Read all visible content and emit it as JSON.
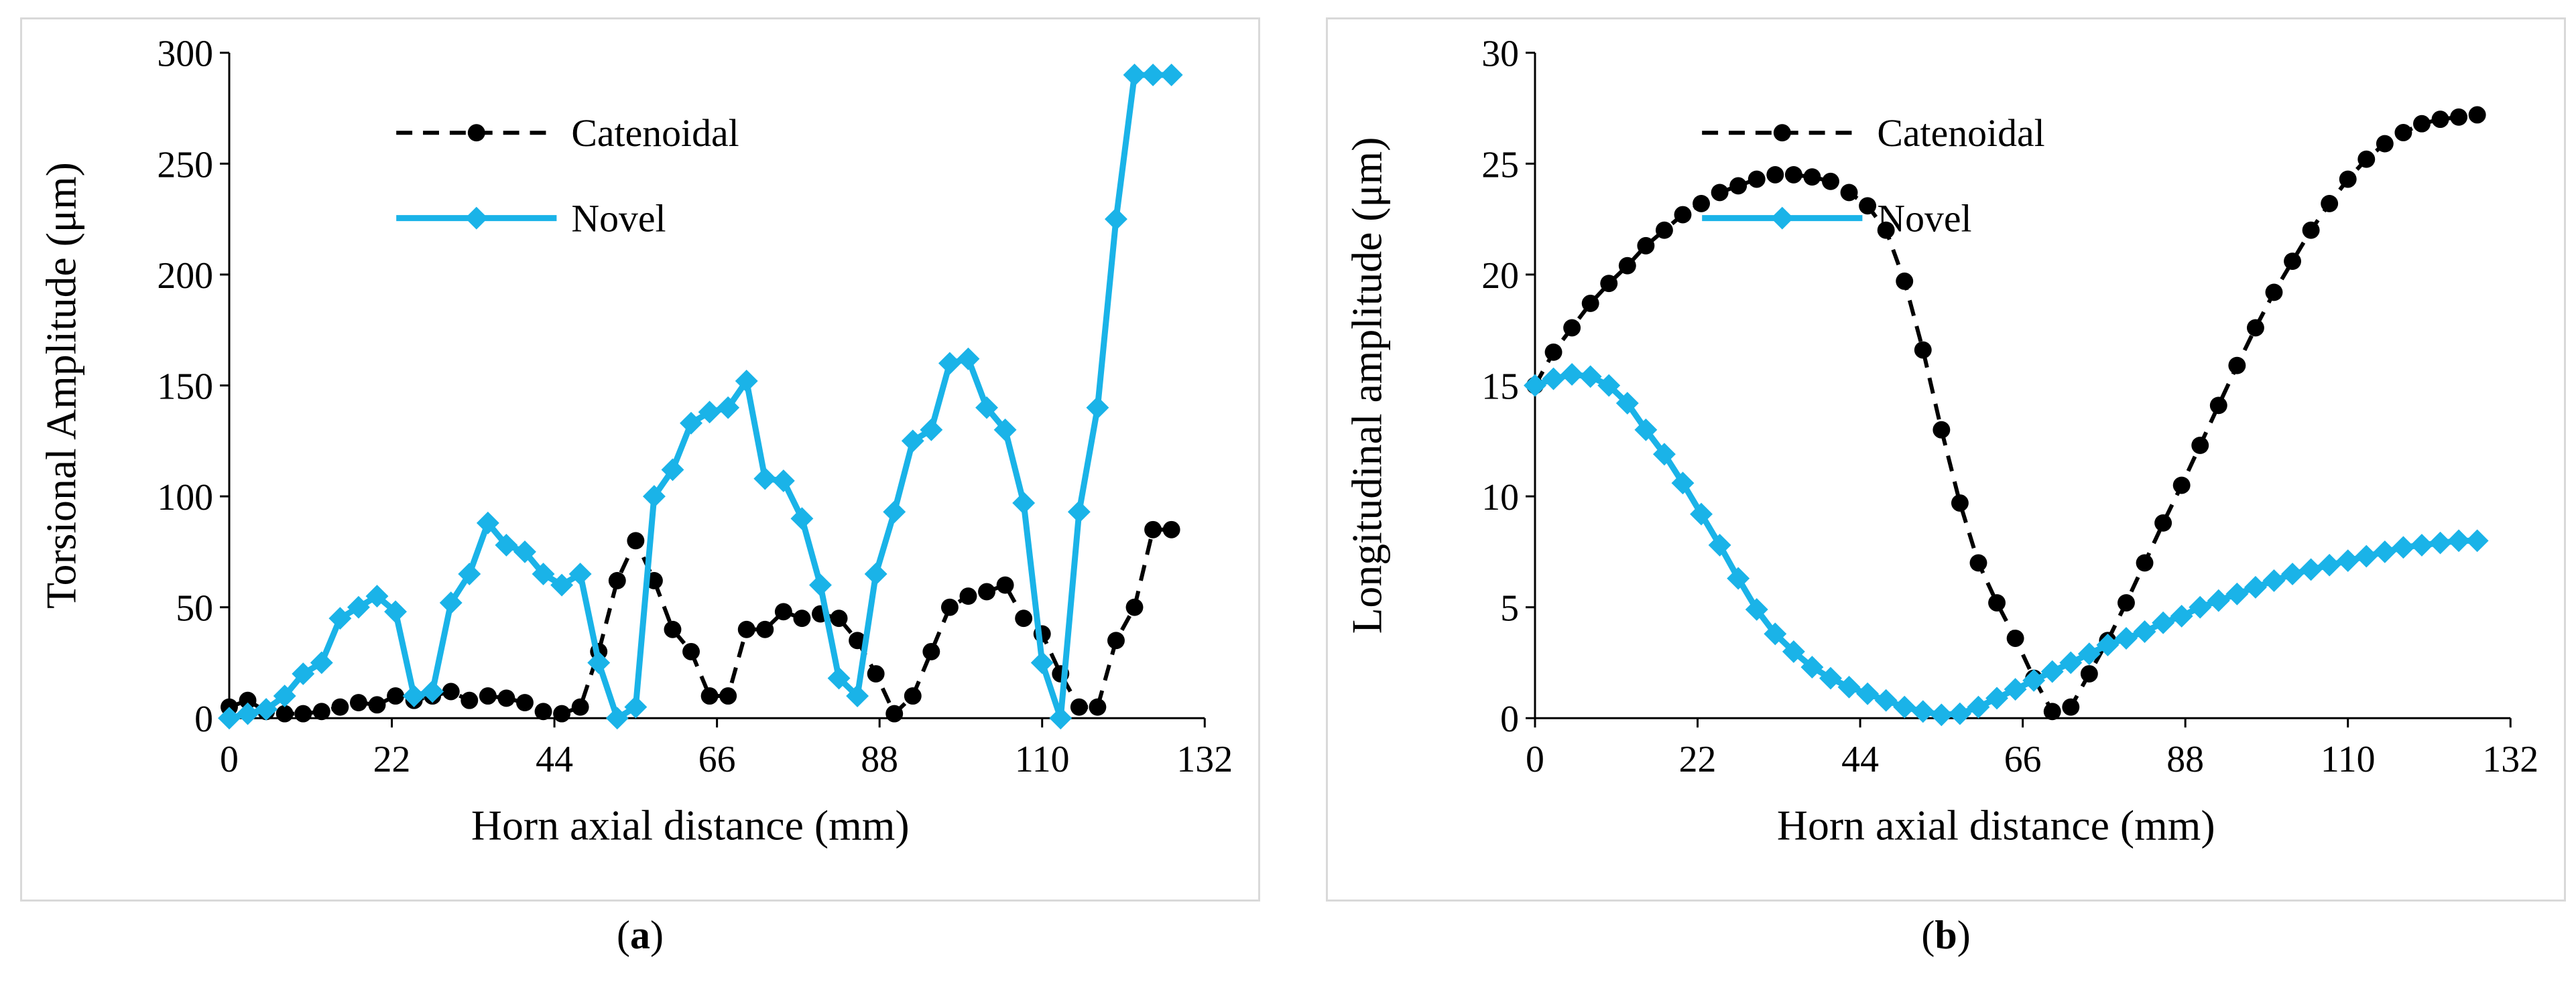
{
  "colors": {
    "catenoidal": "#000000",
    "novel": "#1ab3e8",
    "axis": "#000000",
    "border": "#d9d9d9"
  },
  "captions": {
    "a": "a",
    "b": "b"
  },
  "chart_data": [
    {
      "id": "a",
      "type": "line",
      "xlabel": "Horn axial distance (mm)",
      "ylabel": "Torsional Amplitude (μm)",
      "xlim": [
        0,
        132
      ],
      "ylim": [
        0,
        300
      ],
      "xticks": [
        0,
        22,
        44,
        66,
        88,
        110,
        132
      ],
      "yticks": [
        0,
        50,
        100,
        150,
        200,
        250,
        300
      ],
      "legend_position": "top-center",
      "series": [
        {
          "name": "Catenoidal",
          "style": "dashed",
          "marker": "circle",
          "x": [
            0,
            2.5,
            5,
            7.5,
            10,
            12.5,
            15,
            17.5,
            20,
            22.5,
            25,
            27.5,
            30,
            32.5,
            35,
            37.5,
            40,
            42.5,
            45,
            47.5,
            50,
            52.5,
            55,
            57.5,
            60,
            62.5,
            65,
            67.5,
            70,
            72.5,
            75,
            77.5,
            80,
            82.5,
            85,
            87.5,
            90,
            92.5,
            95,
            97.5,
            100,
            102.5,
            105,
            107.5,
            110,
            112.5,
            115,
            117.5,
            120,
            122.5,
            125,
            127.5
          ],
          "y": [
            5,
            8,
            3,
            2,
            2,
            3,
            5,
            7,
            6,
            10,
            8,
            10,
            12,
            8,
            10,
            9,
            7,
            3,
            2,
            5,
            30,
            62,
            80,
            62,
            40,
            30,
            10,
            10,
            40,
            40,
            48,
            45,
            47,
            45,
            35,
            20,
            2,
            10,
            30,
            50,
            55,
            57,
            60,
            45,
            38,
            20,
            5,
            5,
            35,
            50,
            85,
            85
          ]
        },
        {
          "name": "Novel",
          "style": "solid",
          "marker": "diamond",
          "x": [
            0,
            2.5,
            5,
            7.5,
            10,
            12.5,
            15,
            17.5,
            20,
            22.5,
            25,
            27.5,
            30,
            32.5,
            35,
            37.5,
            40,
            42.5,
            45,
            47.5,
            50,
            52.5,
            55,
            57.5,
            60,
            62.5,
            65,
            67.5,
            70,
            72.5,
            75,
            77.5,
            80,
            82.5,
            85,
            87.5,
            90,
            92.5,
            95,
            97.5,
            100,
            102.5,
            105,
            107.5,
            110,
            112.5,
            115,
            117.5,
            120,
            122.5,
            125,
            127.5
          ],
          "y": [
            0,
            2,
            4,
            10,
            20,
            25,
            45,
            50,
            55,
            48,
            10,
            12,
            52,
            65,
            88,
            78,
            75,
            65,
            60,
            65,
            25,
            0,
            5,
            100,
            112,
            133,
            138,
            140,
            152,
            108,
            107,
            90,
            60,
            18,
            10,
            65,
            93,
            125,
            130,
            160,
            162,
            140,
            130,
            97,
            25,
            0,
            93,
            140,
            225,
            290,
            290,
            290
          ]
        }
      ]
    },
    {
      "id": "b",
      "type": "line",
      "xlabel": "Horn axial distance (mm)",
      "ylabel": "Longitudinal amplitude (μm)",
      "xlim": [
        0,
        132
      ],
      "ylim": [
        0,
        30
      ],
      "xticks": [
        0,
        22,
        44,
        66,
        88,
        110,
        132
      ],
      "yticks": [
        0,
        5,
        10,
        15,
        20,
        25,
        30
      ],
      "legend_position": "top-center",
      "series": [
        {
          "name": "Catenoidal",
          "style": "dashed",
          "marker": "circle",
          "x": [
            0,
            2.5,
            5,
            7.5,
            10,
            12.5,
            15,
            17.5,
            20,
            22.5,
            25,
            27.5,
            30,
            32.5,
            35,
            37.5,
            40,
            42.5,
            45,
            47.5,
            50,
            52.5,
            55,
            57.5,
            60,
            62.5,
            65,
            67.5,
            70,
            72.5,
            75,
            77.5,
            80,
            82.5,
            85,
            87.5,
            90,
            92.5,
            95,
            97.5,
            100,
            102.5,
            105,
            107.5,
            110,
            112.5,
            115,
            117.5,
            120,
            122.5,
            125,
            127.5
          ],
          "y": [
            15,
            16.5,
            17.6,
            18.7,
            19.6,
            20.4,
            21.3,
            22,
            22.7,
            23.2,
            23.7,
            24,
            24.3,
            24.5,
            24.5,
            24.4,
            24.2,
            23.7,
            23.1,
            22,
            19.7,
            16.6,
            13,
            9.7,
            7,
            5.2,
            3.6,
            1.8,
            0.3,
            0.5,
            2,
            3.5,
            5.2,
            7,
            8.8,
            10.5,
            12.3,
            14.1,
            15.9,
            17.6,
            19.2,
            20.6,
            22,
            23.2,
            24.3,
            25.2,
            25.9,
            26.4,
            26.8,
            27,
            27.1,
            27.2
          ]
        },
        {
          "name": "Novel",
          "style": "solid",
          "marker": "diamond",
          "x": [
            0,
            2.5,
            5,
            7.5,
            10,
            12.5,
            15,
            17.5,
            20,
            22.5,
            25,
            27.5,
            30,
            32.5,
            35,
            37.5,
            40,
            42.5,
            45,
            47.5,
            50,
            52.5,
            55,
            57.5,
            60,
            62.5,
            65,
            67.5,
            70,
            72.5,
            75,
            77.5,
            80,
            82.5,
            85,
            87.5,
            90,
            92.5,
            95,
            97.5,
            100,
            102.5,
            105,
            107.5,
            110,
            112.5,
            115,
            117.5,
            120,
            122.5,
            125,
            127.5
          ],
          "y": [
            15,
            15.3,
            15.5,
            15.4,
            15,
            14.2,
            13,
            11.9,
            10.6,
            9.2,
            7.8,
            6.3,
            4.9,
            3.8,
            3,
            2.3,
            1.8,
            1.4,
            1.1,
            0.8,
            0.5,
            0.3,
            0.15,
            0.2,
            0.5,
            0.9,
            1.3,
            1.7,
            2.1,
            2.5,
            2.9,
            3.3,
            3.6,
            3.9,
            4.3,
            4.6,
            5,
            5.3,
            5.6,
            5.9,
            6.2,
            6.5,
            6.7,
            6.9,
            7.1,
            7.3,
            7.5,
            7.7,
            7.8,
            7.9,
            8,
            8
          ]
        }
      ]
    }
  ]
}
